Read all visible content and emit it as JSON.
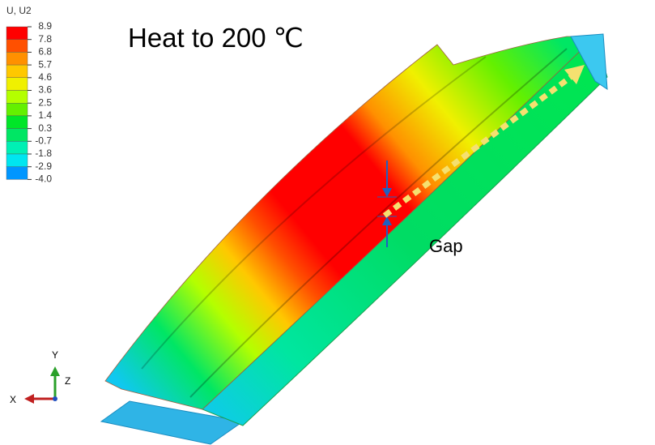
{
  "legend": {
    "title": "U, U2",
    "labels": [
      "8.9",
      "7.8",
      "6.8",
      "5.7",
      "4.6",
      "3.6",
      "2.5",
      "1.4",
      "0.3",
      "-0.7",
      "-1.8",
      "-2.9",
      "-4.0"
    ],
    "colors": [
      "#ff0000",
      "#ff5000",
      "#ff9000",
      "#ffc800",
      "#f0f000",
      "#b4ff00",
      "#64f000",
      "#00e628",
      "#00e664",
      "#00f0b4",
      "#00e6f0",
      "#0096ff"
    ]
  },
  "title": "Heat to 200 ℃",
  "annotation": "Gap",
  "triad": {
    "x": "X",
    "y": "Y",
    "z": "Z"
  }
}
